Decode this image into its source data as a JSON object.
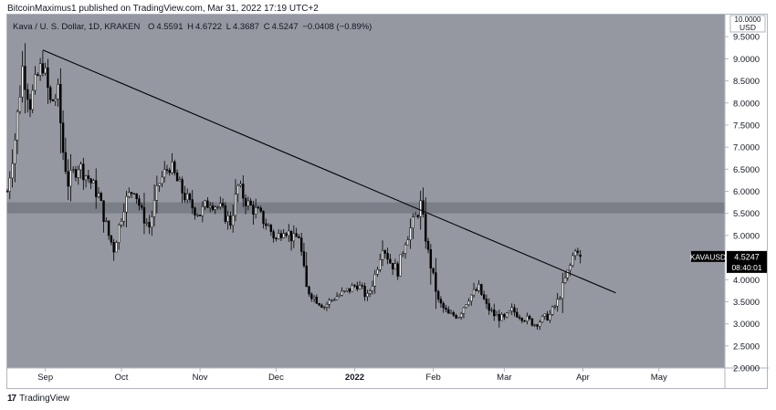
{
  "header": {
    "published_text": "BitcoinMaximus1 published on TradingView.com, Mar 31, 2022 17:19 UTC+2"
  },
  "ohlc": {
    "symbol_text": "Kava / U. S. Dollar, 1D, KRAKEN",
    "o_label": "O",
    "o_value": "4.5591",
    "h_label": "H",
    "h_value": "4.6722",
    "l_label": "L",
    "l_value": "4.3687",
    "c_label": "C",
    "c_value": "4.5247",
    "change": "−0.0408 (−0.89%)"
  },
  "price_tag": {
    "symbol": "KAVAUSD",
    "price": "4.5247",
    "countdown": "08:40:01"
  },
  "footer": {
    "logo_text": "17",
    "brand": "TradingView"
  },
  "colors": {
    "plot_bg": "#9598a1",
    "up": "#ffffff",
    "down": "#000000",
    "zone": "#767981",
    "trendline": "#000000",
    "tag_bg": "#000000"
  },
  "chart_data": {
    "type": "candlestick",
    "currency_label": "USD",
    "y_axis_title": "10.0000",
    "yticks": [
      "2.0000",
      "2.5000",
      "3.0000",
      "3.5000",
      "4.0000",
      "4.5000",
      "5.0000",
      "5.5000",
      "6.0000",
      "6.5000",
      "7.0000",
      "7.5000",
      "8.0000",
      "8.5000",
      "9.0000",
      "9.5000",
      "10.0000"
    ],
    "ylim": [
      2.0,
      10.0
    ],
    "xticks": [
      "Sep",
      "Oct",
      "Nov",
      "Dec",
      "2022",
      "Feb",
      "Mar",
      "Apr",
      "May"
    ],
    "xtick_dates": [
      "2021-09-01",
      "2021-10-01",
      "2021-11-01",
      "2021-12-01",
      "2022-01-01",
      "2022-02-01",
      "2022-03-01",
      "2022-04-01",
      "2022-05-01"
    ],
    "xlim": [
      "2021-08-17",
      "2022-05-27"
    ],
    "horizontal_zone": [
      5.5,
      5.75
    ],
    "trendline": {
      "start": [
        "2021-08-31",
        9.2
      ],
      "end": [
        "2022-04-14",
        3.7
      ]
    },
    "close_anchors": [
      [
        "2021-08-17",
        6.0
      ],
      [
        "2021-08-20",
        7.2
      ],
      [
        "2021-08-23",
        8.8
      ],
      [
        "2021-08-26",
        8.0
      ],
      [
        "2021-08-29",
        8.6
      ],
      [
        "2021-08-31",
        8.9
      ],
      [
        "2021-09-03",
        8.0
      ],
      [
        "2021-09-06",
        8.2
      ],
      [
        "2021-09-08",
        6.9
      ],
      [
        "2021-09-10",
        6.2
      ],
      [
        "2021-09-14",
        6.6
      ],
      [
        "2021-09-18",
        6.3
      ],
      [
        "2021-09-22",
        5.9
      ],
      [
        "2021-09-26",
        5.0
      ],
      [
        "2021-09-28",
        4.7
      ],
      [
        "2021-10-02",
        5.7
      ],
      [
        "2021-10-06",
        6.1
      ],
      [
        "2021-10-09",
        5.5
      ],
      [
        "2021-10-12",
        5.2
      ],
      [
        "2021-10-16",
        6.2
      ],
      [
        "2021-10-20",
        6.6
      ],
      [
        "2021-10-24",
        6.1
      ],
      [
        "2021-10-28",
        5.7
      ],
      [
        "2021-11-01",
        5.5
      ],
      [
        "2021-11-05",
        5.8
      ],
      [
        "2021-11-09",
        5.6
      ],
      [
        "2021-11-13",
        5.3
      ],
      [
        "2021-11-16",
        6.1
      ],
      [
        "2021-11-20",
        5.7
      ],
      [
        "2021-11-24",
        5.5
      ],
      [
        "2021-11-28",
        5.2
      ],
      [
        "2021-12-01",
        4.9
      ],
      [
        "2021-12-04",
        5.2
      ],
      [
        "2021-12-08",
        4.9
      ],
      [
        "2021-12-10",
        5.0
      ],
      [
        "2021-12-13",
        3.8
      ],
      [
        "2021-12-16",
        3.6
      ],
      [
        "2021-12-20",
        3.4
      ],
      [
        "2021-12-24",
        3.6
      ],
      [
        "2021-12-28",
        3.7
      ],
      [
        "2022-01-02",
        3.9
      ],
      [
        "2022-01-06",
        3.6
      ],
      [
        "2022-01-09",
        4.1
      ],
      [
        "2022-01-12",
        4.8
      ],
      [
        "2022-01-15",
        4.4
      ],
      [
        "2022-01-18",
        4.2
      ],
      [
        "2022-01-21",
        4.9
      ],
      [
        "2022-01-25",
        5.4
      ],
      [
        "2022-01-27",
        5.7
      ],
      [
        "2022-01-30",
        4.6
      ],
      [
        "2022-02-03",
        3.5
      ],
      [
        "2022-02-07",
        3.2
      ],
      [
        "2022-02-11",
        3.2
      ],
      [
        "2022-02-15",
        3.6
      ],
      [
        "2022-02-19",
        3.8
      ],
      [
        "2022-02-22",
        3.4
      ],
      [
        "2022-02-25",
        3.2
      ],
      [
        "2022-03-01",
        3.1
      ],
      [
        "2022-03-04",
        3.3
      ],
      [
        "2022-03-07",
        3.2
      ],
      [
        "2022-03-10",
        3.1
      ],
      [
        "2022-03-13",
        3.0
      ],
      [
        "2022-03-16",
        3.1
      ],
      [
        "2022-03-19",
        3.2
      ],
      [
        "2022-03-22",
        3.5
      ],
      [
        "2022-03-25",
        4.0
      ],
      [
        "2022-03-27",
        4.3
      ],
      [
        "2022-03-29",
        4.75
      ],
      [
        "2022-03-30",
        4.56
      ],
      [
        "2022-03-31",
        4.52
      ]
    ],
    "last_candle": {
      "date": "2022-03-31",
      "open": 4.5591,
      "high": 4.6722,
      "low": 4.3687,
      "close": 4.5247
    }
  }
}
